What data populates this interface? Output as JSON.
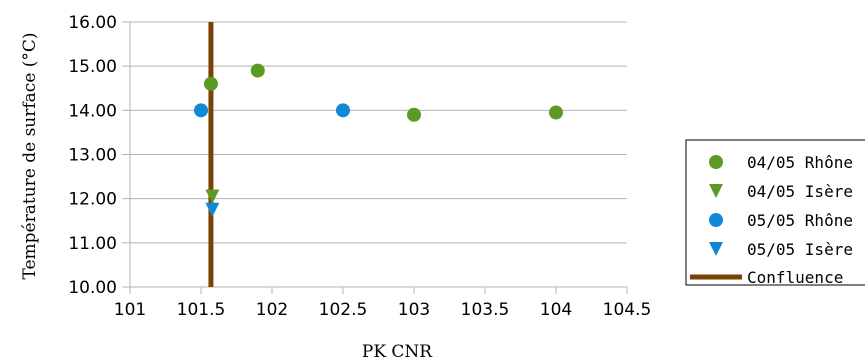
{
  "chart_data": {
    "type": "scatter",
    "xlabel": "PK CNR",
    "ylabel": "Température de surface (°C)",
    "xlim": [
      101,
      104.5
    ],
    "ylim": [
      10,
      16
    ],
    "x_ticks": [
      "101",
      "101.5",
      "102",
      "102.5",
      "103",
      "103.5",
      "104",
      "104.5"
    ],
    "y_ticks": [
      "10.00",
      "11.00",
      "12.00",
      "13.00",
      "14.00",
      "15.00",
      "16.00"
    ],
    "grid": "horizontal",
    "legend_position": "right",
    "series": [
      {
        "name": "04/05 Rhône",
        "marker": "circle",
        "color": "#5b9a25",
        "points": [
          [
            101.57,
            14.6
          ],
          [
            101.9,
            14.9
          ],
          [
            103.0,
            13.9
          ],
          [
            104.0,
            13.95
          ]
        ]
      },
      {
        "name": "04/05 Isère",
        "marker": "triangle-down",
        "color": "#5b9a25",
        "points": [
          [
            101.58,
            12.05
          ]
        ]
      },
      {
        "name": "05/05 Rhône",
        "marker": "circle",
        "color": "#0f88d8",
        "points": [
          [
            101.5,
            14.0
          ],
          [
            102.5,
            14.0
          ]
        ]
      },
      {
        "name": "05/05 Isère",
        "marker": "triangle-down",
        "color": "#0f88d8",
        "points": [
          [
            101.58,
            11.75
          ]
        ]
      },
      {
        "name": "Confluence",
        "marker": "line",
        "color": "#7b4206",
        "points": [
          [
            101.57,
            10.0
          ],
          [
            101.57,
            16.0
          ]
        ]
      }
    ]
  }
}
